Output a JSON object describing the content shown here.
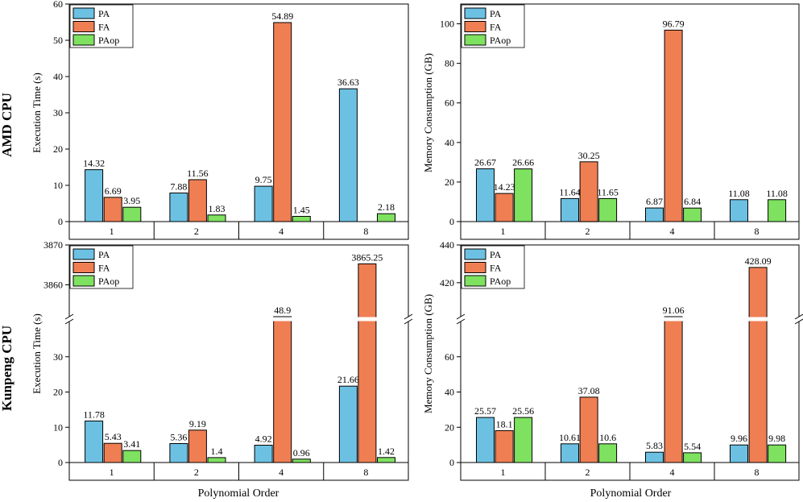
{
  "row_titles": [
    "AMD CPU",
    "Kunpeng CPU"
  ],
  "x_axis_title": "Polynomial Order",
  "colors": {
    "PA": "#6cc1e3",
    "FA": "#f07e53",
    "PAop": "#7ee15f"
  },
  "chart_data": [
    {
      "id": "amd-time",
      "type": "bar",
      "categories": [
        "1",
        "2",
        "4",
        "8"
      ],
      "series": [
        {
          "name": "PA",
          "values": [
            14.32,
            7.88,
            9.75,
            36.63
          ]
        },
        {
          "name": "FA",
          "values": [
            6.69,
            11.56,
            54.89,
            null
          ]
        },
        {
          "name": "PAop",
          "values": [
            3.95,
            1.83,
            1.45,
            2.18
          ]
        }
      ],
      "data_labels": [
        [
          "14.32",
          "7.88",
          "9.75",
          "36.63"
        ],
        [
          "6.69",
          "11.56",
          "54.89",
          ""
        ],
        [
          "3.95",
          "1.83",
          "1.45",
          "2.18"
        ]
      ],
      "xlabel": "Polynomial Order",
      "ylabel": "Execution Time (s)",
      "ylim": [
        0,
        60
      ],
      "yticks": [
        "0",
        "10",
        "20",
        "30",
        "40",
        "50",
        "60"
      ],
      "legend": "top-left",
      "grid": false
    },
    {
      "id": "amd-mem",
      "type": "bar",
      "categories": [
        "1",
        "2",
        "4",
        "8"
      ],
      "series": [
        {
          "name": "PA",
          "values": [
            26.67,
            11.64,
            6.87,
            11.08
          ]
        },
        {
          "name": "FA",
          "values": [
            14.23,
            30.25,
            96.79,
            null
          ]
        },
        {
          "name": "PAop",
          "values": [
            26.66,
            11.65,
            6.84,
            11.08
          ]
        }
      ],
      "data_labels": [
        [
          "26.67",
          "11.64",
          "6.87",
          "11.08"
        ],
        [
          "14.23",
          "30.25",
          "96.79",
          ""
        ],
        [
          "26.66",
          "11.65",
          "6.84",
          "11.08"
        ]
      ],
      "xlabel": "Polynomial Order",
      "ylabel": "Memory Consumption (GB)",
      "ylim": [
        0,
        110
      ],
      "yticks": [
        "0",
        "20",
        "40",
        "60",
        "80",
        "100"
      ],
      "legend": "top-left",
      "grid": false
    },
    {
      "id": "kp-time",
      "type": "bar",
      "categories": [
        "1",
        "2",
        "4",
        "8"
      ],
      "series": [
        {
          "name": "PA",
          "values": [
            11.78,
            5.36,
            4.92,
            21.66
          ]
        },
        {
          "name": "FA",
          "values": [
            5.43,
            9.19,
            48.9,
            3865.25
          ]
        },
        {
          "name": "PAop",
          "values": [
            3.41,
            1.4,
            0.96,
            1.42
          ]
        }
      ],
      "data_labels": [
        [
          "11.78",
          "5.36",
          "4.92",
          "21.66"
        ],
        [
          "5.43",
          "9.19",
          "48.9",
          "3865.25"
        ],
        [
          "3.41",
          "1.4",
          "0.96",
          "1.42"
        ]
      ],
      "xlabel": "Polynomial Order",
      "ylabel": "Execution Time (s)",
      "axis_break": true,
      "ylim_lower": [
        0,
        40
      ],
      "ylim_upper": [
        3852,
        3870
      ],
      "yticks_lower": [
        "0",
        "10",
        "20",
        "30"
      ],
      "yticks_upper": [
        "3860",
        "3870"
      ],
      "legend": "top-left",
      "grid": false
    },
    {
      "id": "kp-mem",
      "type": "bar",
      "categories": [
        "1",
        "2",
        "4",
        "8"
      ],
      "series": [
        {
          "name": "PA",
          "values": [
            25.57,
            10.61,
            5.83,
            9.96
          ]
        },
        {
          "name": "FA",
          "values": [
            18.1,
            37.08,
            91.06,
            428.09
          ]
        },
        {
          "name": "PAop",
          "values": [
            25.56,
            10.6,
            5.54,
            9.98
          ]
        }
      ],
      "data_labels": [
        [
          "25.57",
          "10.61",
          "5.83",
          "9.96"
        ],
        [
          "18.1",
          "37.08",
          "91.06",
          "428.09"
        ],
        [
          "25.56",
          "10.6",
          "5.54",
          "9.98"
        ]
      ],
      "xlabel": "Polynomial Order",
      "ylabel": "Memory Consumption (GB)",
      "axis_break": true,
      "ylim_lower": [
        0,
        80
      ],
      "ylim_upper": [
        402,
        440
      ],
      "yticks_lower": [
        "0",
        "20",
        "40",
        "60"
      ],
      "yticks_upper": [
        "420",
        "440"
      ],
      "legend": "top-left",
      "grid": false
    }
  ]
}
